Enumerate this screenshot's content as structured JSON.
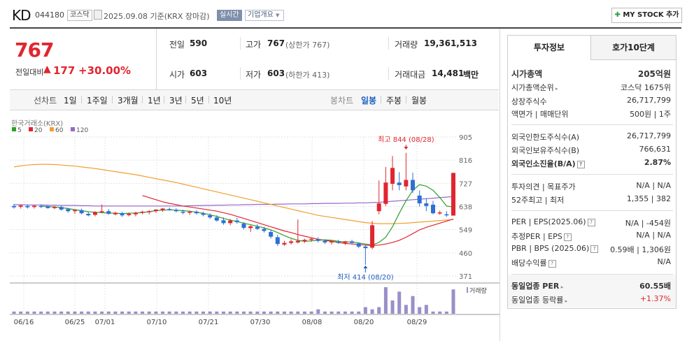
{
  "header": {
    "title": "KD",
    "code": "044180",
    "market_badge": "코스닥",
    "date_text": "2025.09.08 기준(KRX 장마감)",
    "realtime_badge": "실시간",
    "overview_label": "기업개요",
    "my_stock_label": "MY STOCK 추가"
  },
  "price": {
    "current": "767",
    "change_label": "전일대비",
    "change_value": "177",
    "change_percent": "+30.00%",
    "prev_label": "전일",
    "prev_value": "590",
    "high_label": "고가",
    "high_value": "767",
    "high_limit": "(상한가 767)",
    "volume_label": "거래량",
    "volume_value": "19,361,513",
    "open_label": "시가",
    "open_value": "603",
    "low_label": "저가",
    "low_value": "603",
    "low_limit": "(하한가 413)",
    "amount_label": "거래대금",
    "amount_value": "14,481",
    "amount_unit": "백만"
  },
  "period_tabs": {
    "line_label": "선차트",
    "items": [
      "1일",
      "1주일",
      "3개월",
      "1년",
      "3년",
      "5년",
      "10년"
    ],
    "candle_label": "봉차트",
    "candle_items": [
      "일봉",
      "주봉",
      "월봉"
    ],
    "active_candle": "일봉"
  },
  "chart_data": {
    "type": "candlestick",
    "source_label": "한국거래소(KRX)",
    "legend": [
      {
        "name": "5",
        "color": "#2ca02c"
      },
      {
        "name": "20",
        "color": "#e0262f"
      },
      {
        "name": "60",
        "color": "#f0a030"
      },
      {
        "name": "120",
        "color": "#9966cc"
      }
    ],
    "y_ticks": [
      905,
      816,
      727,
      638,
      549,
      460,
      371
    ],
    "ylim": [
      371,
      905
    ],
    "x_tick_labels": [
      "06/16",
      "06/25",
      "07/01",
      "07/10",
      "07/21",
      "07/30",
      "08/08",
      "08/20",
      "08/29"
    ],
    "high_annotation": "최고 844 (08/28)",
    "low_annotation": "최저 414 (08/20)",
    "volume_label": "거래량",
    "candles": [
      {
        "o": 640,
        "h": 648,
        "l": 630,
        "c": 635
      },
      {
        "o": 637,
        "h": 645,
        "l": 630,
        "c": 642
      },
      {
        "o": 640,
        "h": 646,
        "l": 630,
        "c": 635
      },
      {
        "o": 636,
        "h": 643,
        "l": 630,
        "c": 641
      },
      {
        "o": 640,
        "h": 646,
        "l": 632,
        "c": 638
      },
      {
        "o": 638,
        "h": 642,
        "l": 630,
        "c": 632
      },
      {
        "o": 633,
        "h": 640,
        "l": 628,
        "c": 636
      },
      {
        "o": 636,
        "h": 642,
        "l": 622,
        "c": 626
      },
      {
        "o": 628,
        "h": 633,
        "l": 614,
        "c": 620
      },
      {
        "o": 620,
        "h": 628,
        "l": 610,
        "c": 624
      },
      {
        "o": 624,
        "h": 630,
        "l": 608,
        "c": 612
      },
      {
        "o": 610,
        "h": 618,
        "l": 600,
        "c": 604
      },
      {
        "o": 606,
        "h": 620,
        "l": 600,
        "c": 616
      },
      {
        "o": 618,
        "h": 646,
        "l": 612,
        "c": 620
      },
      {
        "o": 620,
        "h": 628,
        "l": 606,
        "c": 610
      },
      {
        "o": 608,
        "h": 618,
        "l": 604,
        "c": 614
      },
      {
        "o": 612,
        "h": 618,
        "l": 598,
        "c": 604
      },
      {
        "o": 605,
        "h": 615,
        "l": 600,
        "c": 610
      },
      {
        "o": 608,
        "h": 618,
        "l": 600,
        "c": 614
      },
      {
        "o": 614,
        "h": 622,
        "l": 608,
        "c": 618
      },
      {
        "o": 616,
        "h": 624,
        "l": 608,
        "c": 620
      },
      {
        "o": 620,
        "h": 628,
        "l": 614,
        "c": 626
      },
      {
        "o": 624,
        "h": 632,
        "l": 618,
        "c": 630
      },
      {
        "o": 628,
        "h": 634,
        "l": 622,
        "c": 624
      },
      {
        "o": 625,
        "h": 631,
        "l": 615,
        "c": 620
      },
      {
        "o": 618,
        "h": 626,
        "l": 608,
        "c": 614
      },
      {
        "o": 616,
        "h": 622,
        "l": 606,
        "c": 618
      },
      {
        "o": 618,
        "h": 624,
        "l": 608,
        "c": 612
      },
      {
        "o": 612,
        "h": 618,
        "l": 600,
        "c": 606
      },
      {
        "o": 604,
        "h": 612,
        "l": 590,
        "c": 596
      },
      {
        "o": 596,
        "h": 604,
        "l": 580,
        "c": 584
      },
      {
        "o": 585,
        "h": 596,
        "l": 568,
        "c": 574
      },
      {
        "o": 574,
        "h": 590,
        "l": 566,
        "c": 584
      },
      {
        "o": 584,
        "h": 594,
        "l": 572,
        "c": 578
      },
      {
        "o": 572,
        "h": 578,
        "l": 550,
        "c": 556
      },
      {
        "o": 555,
        "h": 566,
        "l": 540,
        "c": 562
      },
      {
        "o": 560,
        "h": 570,
        "l": 548,
        "c": 552
      },
      {
        "o": 552,
        "h": 560,
        "l": 538,
        "c": 544
      },
      {
        "o": 540,
        "h": 548,
        "l": 515,
        "c": 522
      },
      {
        "o": 520,
        "h": 530,
        "l": 486,
        "c": 494
      },
      {
        "o": 492,
        "h": 506,
        "l": 486,
        "c": 498
      },
      {
        "o": 498,
        "h": 512,
        "l": 492,
        "c": 504
      },
      {
        "o": 500,
        "h": 588,
        "l": 496,
        "c": 506
      },
      {
        "o": 504,
        "h": 514,
        "l": 498,
        "c": 510
      },
      {
        "o": 510,
        "h": 518,
        "l": 502,
        "c": 514
      },
      {
        "o": 512,
        "h": 520,
        "l": 500,
        "c": 506
      },
      {
        "o": 506,
        "h": 512,
        "l": 494,
        "c": 500
      },
      {
        "o": 500,
        "h": 508,
        "l": 492,
        "c": 504
      },
      {
        "o": 502,
        "h": 510,
        "l": 494,
        "c": 498
      },
      {
        "o": 498,
        "h": 506,
        "l": 490,
        "c": 504
      },
      {
        "o": 504,
        "h": 510,
        "l": 494,
        "c": 498
      },
      {
        "o": 496,
        "h": 500,
        "l": 478,
        "c": 484
      },
      {
        "o": 484,
        "h": 490,
        "l": 414,
        "c": 478
      },
      {
        "o": 480,
        "h": 582,
        "l": 474,
        "c": 566
      },
      {
        "o": 620,
        "h": 738,
        "l": 608,
        "c": 650
      },
      {
        "o": 648,
        "h": 790,
        "l": 640,
        "c": 730
      },
      {
        "o": 725,
        "h": 832,
        "l": 700,
        "c": 786
      },
      {
        "o": 730,
        "h": 770,
        "l": 700,
        "c": 720
      },
      {
        "o": 715,
        "h": 844,
        "l": 700,
        "c": 740
      },
      {
        "o": 740,
        "h": 768,
        "l": 690,
        "c": 700
      },
      {
        "o": 680,
        "h": 700,
        "l": 638,
        "c": 650
      },
      {
        "o": 650,
        "h": 670,
        "l": 620,
        "c": 640
      },
      {
        "o": 645,
        "h": 660,
        "l": 608,
        "c": 612
      },
      {
        "o": 612,
        "h": 622,
        "l": 606,
        "c": 615
      },
      {
        "o": 608,
        "h": 620,
        "l": 598,
        "c": 606
      },
      {
        "o": 603,
        "h": 767,
        "l": 603,
        "c": 767
      }
    ],
    "volumes": [
      1,
      1,
      1,
      1,
      1,
      1,
      1,
      1,
      1,
      1,
      1,
      1,
      1,
      1,
      1,
      1,
      1,
      1,
      1,
      1,
      1,
      1,
      1,
      1,
      1,
      1,
      1,
      1,
      1,
      1,
      1,
      1,
      1,
      1,
      1,
      1,
      1,
      1,
      1,
      1,
      1,
      1,
      1,
      1,
      1,
      2,
      1,
      1,
      1,
      1,
      1,
      1,
      3,
      2,
      3,
      12,
      6,
      10,
      4,
      8,
      3,
      4,
      1,
      1,
      1,
      11
    ],
    "ma5": [
      null,
      null,
      null,
      null,
      640,
      638,
      636,
      634,
      630,
      626,
      622,
      618,
      616,
      614,
      613,
      612,
      611,
      612,
      613,
      615,
      618,
      622,
      624,
      625,
      624,
      622,
      620,
      616,
      612,
      606,
      600,
      592,
      586,
      580,
      574,
      568,
      562,
      556,
      548,
      538,
      526,
      516,
      508,
      504,
      506,
      508,
      510,
      508,
      504,
      502,
      502,
      498,
      494,
      490,
      500,
      520,
      560,
      612,
      660,
      700,
      722,
      716,
      700,
      672,
      640,
      636
    ],
    "ma20": [
      null,
      null,
      null,
      null,
      null,
      null,
      null,
      null,
      null,
      null,
      null,
      null,
      null,
      null,
      null,
      null,
      null,
      null,
      null,
      680,
      672,
      664,
      656,
      650,
      645,
      640,
      636,
      632,
      628,
      624,
      620,
      614,
      608,
      600,
      592,
      584,
      576,
      568,
      560,
      552,
      544,
      538,
      530,
      524,
      518,
      512,
      508,
      504,
      500,
      496,
      494,
      492,
      490,
      488,
      490,
      494,
      500,
      508,
      520,
      534,
      548,
      558,
      566,
      574,
      582,
      590
    ],
    "ma60": [
      790,
      794,
      797,
      799,
      800,
      800,
      799,
      797,
      795,
      793,
      790,
      787,
      784,
      780,
      776,
      772,
      768,
      764,
      760,
      755,
      750,
      745,
      740,
      735,
      730,
      724,
      718,
      712,
      706,
      700,
      694,
      688,
      682,
      676,
      670,
      664,
      658,
      652,
      646,
      640,
      634,
      628,
      622,
      616,
      610,
      604,
      600,
      596,
      592,
      588,
      584,
      580,
      576,
      574,
      572,
      572,
      572,
      573,
      574,
      576,
      578,
      580,
      582,
      584,
      586,
      588
    ],
    "ma120": [
      645,
      645,
      644,
      644,
      644,
      643,
      643,
      642,
      642,
      642,
      641,
      641,
      640,
      640,
      640,
      640,
      640,
      640,
      640,
      640,
      640,
      640,
      640,
      640,
      640,
      640,
      641,
      641,
      642,
      642,
      643,
      643,
      644,
      644,
      645,
      645,
      646,
      646,
      646,
      647,
      647,
      648,
      648,
      648,
      649,
      649,
      650,
      650,
      650,
      651,
      651,
      652,
      652,
      653,
      654,
      656,
      658,
      660,
      662,
      664,
      666,
      668,
      670,
      672,
      674,
      676
    ]
  },
  "right_panel": {
    "tab_active": "투자정보",
    "tab_other": "호가10단계",
    "market_cap_label": "시가총액",
    "market_cap_value": "205억원",
    "rank_label": "시가총액순위",
    "rank_value": "코스닥 1675위",
    "shares_label": "상장주식수",
    "shares_value": "26,717,799",
    "par_label": "액면가 | 매매단위",
    "par_value": "500원 | 1주",
    "foreign_limit_label": "외국인한도주식수(A)",
    "foreign_limit_value": "26,717,799",
    "foreign_hold_label": "외국인보유주식수(B)",
    "foreign_hold_value": "766,631",
    "foreign_ratio_label": "외국인소진율(B/A)",
    "foreign_ratio_value": "2.87%",
    "opinion_label": "투자의견 | 목표주가",
    "opinion_value": "N/A | N/A",
    "w52_label": "52주최고 | 최저",
    "w52_value": "1,355 | 382",
    "per_label": "PER | EPS(2025.06)",
    "per_value": "N/A | -454원",
    "est_per_label": "추정PER | EPS",
    "est_per_value": "N/A | N/A",
    "pbr_label": "PBR | BPS (2025.06)",
    "pbr_value": "0.59배 | 1,306원",
    "div_label": "배당수익률",
    "div_value": "N/A",
    "industry_per_label": "동일업종 PER",
    "industry_per_value": "60.55배",
    "industry_rate_label": "동일업종 등락률",
    "industry_rate_value": "+1.37%"
  }
}
